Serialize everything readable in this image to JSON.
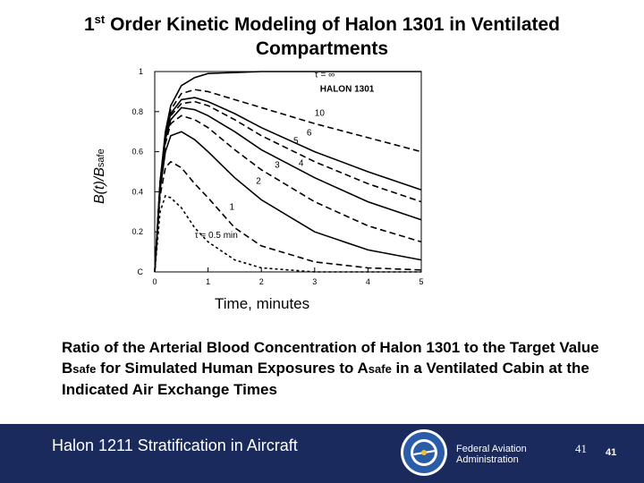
{
  "slide": {
    "title_main": "1",
    "title_sup": "st",
    "title_rest": " Order Kinetic Modeling of Halon 1301 in Ventilated Compartments",
    "ylabel_main": "B(t)/B",
    "ylabel_sub": "safe",
    "xlabel": "Time, minutes",
    "caption": {
      "p1": "Ratio of the Arterial Blood Concentration of Halon 1301 to the Target Value B",
      "sub1": "safe",
      "p2": " for Simulated Human Exposures to A",
      "sub2": "safe",
      "p3": " in a Ventilated Cabin at the Indicated Air Exchange Times"
    }
  },
  "footer": {
    "title": "Halon 1211 Stratification in Aircraft",
    "agency_line1": "Federal Aviation",
    "agency_line2": "Administration",
    "page_number_1": "41",
    "page_number_2": "41",
    "colors": {
      "background": "#1b2a5c",
      "text": "#ffffff"
    }
  },
  "chart_data": {
    "type": "line",
    "legend_text": "HALON 1301",
    "xlim": [
      0,
      5
    ],
    "ylim": [
      0,
      1
    ],
    "x_ticks": [
      "0",
      "1",
      "2",
      "3",
      "4",
      "5"
    ],
    "y_ticks": [
      "C",
      "0.2",
      "0.4",
      "0.6",
      "0.8",
      "1"
    ],
    "grid": false,
    "series": [
      {
        "label": "τ = ∞",
        "tau": null,
        "points": [
          [
            0,
            0
          ],
          [
            0.1,
            0.45
          ],
          [
            0.2,
            0.7
          ],
          [
            0.3,
            0.83
          ],
          [
            0.5,
            0.93
          ],
          [
            0.75,
            0.97
          ],
          [
            1,
            0.99
          ],
          [
            2,
            1.0
          ],
          [
            3,
            1.0
          ],
          [
            4,
            1.0
          ],
          [
            5,
            1.0
          ]
        ]
      },
      {
        "label": "10",
        "tau": 10,
        "points": [
          [
            0,
            0
          ],
          [
            0.1,
            0.45
          ],
          [
            0.2,
            0.69
          ],
          [
            0.3,
            0.81
          ],
          [
            0.5,
            0.89
          ],
          [
            0.75,
            0.91
          ],
          [
            1,
            0.9
          ],
          [
            1.5,
            0.86
          ],
          [
            2,
            0.82
          ],
          [
            3,
            0.74
          ],
          [
            4,
            0.67
          ],
          [
            5,
            0.6
          ]
        ]
      },
      {
        "label": "6",
        "tau": 6,
        "points": [
          [
            0,
            0
          ],
          [
            0.1,
            0.44
          ],
          [
            0.2,
            0.68
          ],
          [
            0.3,
            0.79
          ],
          [
            0.5,
            0.86
          ],
          [
            0.75,
            0.87
          ],
          [
            1,
            0.85
          ],
          [
            1.5,
            0.79
          ],
          [
            2,
            0.72
          ],
          [
            3,
            0.6
          ],
          [
            4,
            0.5
          ],
          [
            5,
            0.41
          ]
        ]
      },
      {
        "label": "5",
        "tau": 5,
        "points": [
          [
            0,
            0
          ],
          [
            0.1,
            0.44
          ],
          [
            0.2,
            0.67
          ],
          [
            0.3,
            0.78
          ],
          [
            0.5,
            0.84
          ],
          [
            0.75,
            0.85
          ],
          [
            1,
            0.83
          ],
          [
            1.5,
            0.76
          ],
          [
            2,
            0.68
          ],
          [
            3,
            0.55
          ],
          [
            4,
            0.44
          ],
          [
            5,
            0.35
          ]
        ]
      },
      {
        "label": "4",
        "tau": 4,
        "points": [
          [
            0,
            0
          ],
          [
            0.1,
            0.43
          ],
          [
            0.2,
            0.66
          ],
          [
            0.3,
            0.76
          ],
          [
            0.5,
            0.82
          ],
          [
            0.75,
            0.81
          ],
          [
            1,
            0.78
          ],
          [
            1.5,
            0.7
          ],
          [
            2,
            0.61
          ],
          [
            3,
            0.47
          ],
          [
            4,
            0.35
          ],
          [
            5,
            0.26
          ]
        ]
      },
      {
        "label": "3",
        "tau": 3,
        "points": [
          [
            0,
            0
          ],
          [
            0.1,
            0.43
          ],
          [
            0.2,
            0.64
          ],
          [
            0.3,
            0.74
          ],
          [
            0.5,
            0.78
          ],
          [
            0.75,
            0.76
          ],
          [
            1,
            0.72
          ],
          [
            1.5,
            0.61
          ],
          [
            2,
            0.51
          ],
          [
            3,
            0.35
          ],
          [
            4,
            0.23
          ],
          [
            5,
            0.15
          ]
        ]
      },
      {
        "label": "2",
        "tau": 2,
        "points": [
          [
            0,
            0
          ],
          [
            0.1,
            0.41
          ],
          [
            0.2,
            0.6
          ],
          [
            0.3,
            0.68
          ],
          [
            0.5,
            0.7
          ],
          [
            0.75,
            0.66
          ],
          [
            1,
            0.6
          ],
          [
            1.5,
            0.47
          ],
          [
            2,
            0.36
          ],
          [
            3,
            0.2
          ],
          [
            4,
            0.11
          ],
          [
            5,
            0.06
          ]
        ]
      },
      {
        "label": "1",
        "tau": 1,
        "points": [
          [
            0,
            0
          ],
          [
            0.1,
            0.38
          ],
          [
            0.2,
            0.52
          ],
          [
            0.3,
            0.55
          ],
          [
            0.5,
            0.52
          ],
          [
            0.75,
            0.44
          ],
          [
            1,
            0.37
          ],
          [
            1.5,
            0.22
          ],
          [
            2,
            0.13
          ],
          [
            3,
            0.05
          ],
          [
            4,
            0.02
          ],
          [
            5,
            0.01
          ]
        ]
      },
      {
        "label": "τ = 0.5 min",
        "tau": 0.5,
        "points": [
          [
            0,
            0
          ],
          [
            0.1,
            0.3
          ],
          [
            0.2,
            0.38
          ],
          [
            0.3,
            0.37
          ],
          [
            0.5,
            0.32
          ],
          [
            0.75,
            0.22
          ],
          [
            1,
            0.15
          ],
          [
            1.5,
            0.06
          ],
          [
            2,
            0.02
          ],
          [
            3,
            0.0
          ],
          [
            4,
            0.0
          ],
          [
            5,
            0.0
          ]
        ]
      }
    ],
    "series_labels": [
      {
        "text": "τ = ∞",
        "x": 3.0,
        "y": 0.97
      },
      {
        "text": "10",
        "x": 3.0,
        "y": 0.78
      },
      {
        "text": "6",
        "x": 2.85,
        "y": 0.68
      },
      {
        "text": "5",
        "x": 2.6,
        "y": 0.64
      },
      {
        "text": "4",
        "x": 2.7,
        "y": 0.53
      },
      {
        "text": "3",
        "x": 2.25,
        "y": 0.52
      },
      {
        "text": "2",
        "x": 1.9,
        "y": 0.44
      },
      {
        "text": "1",
        "x": 1.4,
        "y": 0.31
      },
      {
        "text": "τ = 0.5 min",
        "x": 0.75,
        "y": 0.17
      }
    ]
  }
}
